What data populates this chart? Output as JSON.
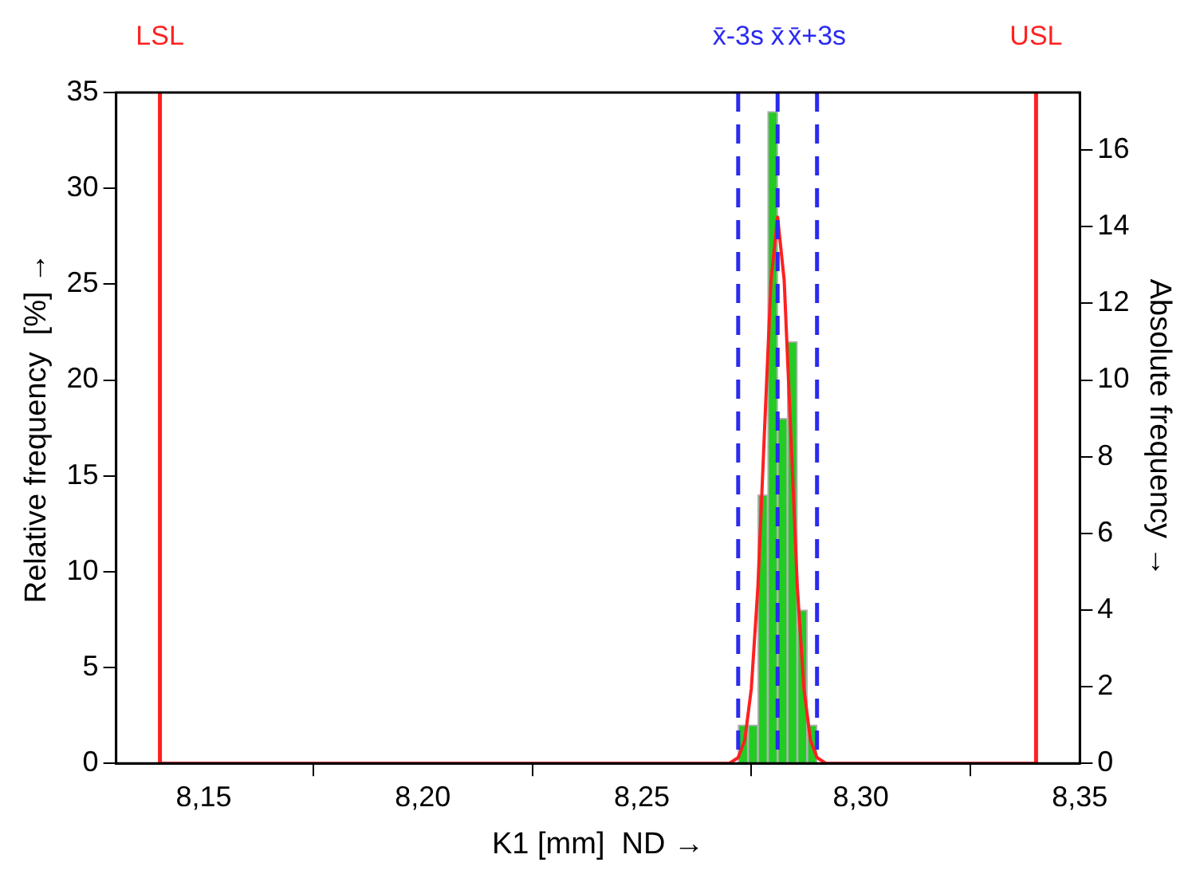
{
  "chart_data": {
    "type": "histogram",
    "xlabel": "K1 [mm]  ND →",
    "ylabel": "Relative frequency  [%] →",
    "y2label": "Absolute frequency →",
    "bins": [
      8.272,
      8.27425,
      8.2765,
      8.27875,
      8.281,
      8.28325,
      8.2855,
      8.28775,
      8.29
    ],
    "series": [
      {
        "type": "histogram",
        "color": "#22cc22",
        "values": [
          2,
          2,
          14,
          34,
          18,
          22,
          8,
          2
        ]
      },
      {
        "type": "line",
        "color": "#ff2020",
        "x": [
          8.14,
          8.27,
          8.272,
          8.2735,
          8.275,
          8.2765,
          8.278,
          8.2795,
          8.281,
          8.2825,
          8.284,
          8.2855,
          8.287,
          8.2885,
          8.29,
          8.292,
          8.34
        ],
        "values": [
          0,
          0,
          0.3,
          1.2,
          3.9,
          9.2,
          17.3,
          25.2,
          28.5,
          25.2,
          17.3,
          9.2,
          3.9,
          1.2,
          0.3,
          0,
          0
        ]
      }
    ],
    "xlim": [
      8.13,
      8.35
    ],
    "xticks": [
      {
        "value": 8.15,
        "label": "8,15"
      },
      {
        "value": 8.2,
        "label": "8,20"
      },
      {
        "value": 8.25,
        "label": "8,25"
      },
      {
        "value": 8.3,
        "label": "8,30"
      },
      {
        "value": 8.35,
        "label": "8,35"
      }
    ],
    "ylim": [
      0,
      35
    ],
    "yticks": [
      0,
      5,
      10,
      15,
      20,
      25,
      30,
      35
    ],
    "y2lim": [
      0,
      17.5
    ],
    "y2ticks": [
      0,
      2,
      4,
      6,
      8,
      10,
      12,
      14,
      16
    ],
    "ref_lines": [
      {
        "axis": "x",
        "value": 8.14,
        "label": "LSL",
        "color": "#ff2020",
        "line_style": "solid"
      },
      {
        "axis": "x",
        "value": 8.34,
        "label": "USL",
        "color": "#ff2020",
        "line_style": "solid"
      },
      {
        "axis": "x",
        "value": 8.272,
        "label": "x̄-3s",
        "color": "#2a2af0",
        "line_style": "dashed"
      },
      {
        "axis": "x",
        "value": 8.281,
        "label": "x̄",
        "color": "#2a2af0",
        "line_style": "dashed"
      },
      {
        "axis": "x",
        "value": 8.29,
        "label": "x̄+3s",
        "color": "#2a2af0",
        "line_style": "dashed"
      }
    ],
    "grid": false,
    "legend": false
  }
}
